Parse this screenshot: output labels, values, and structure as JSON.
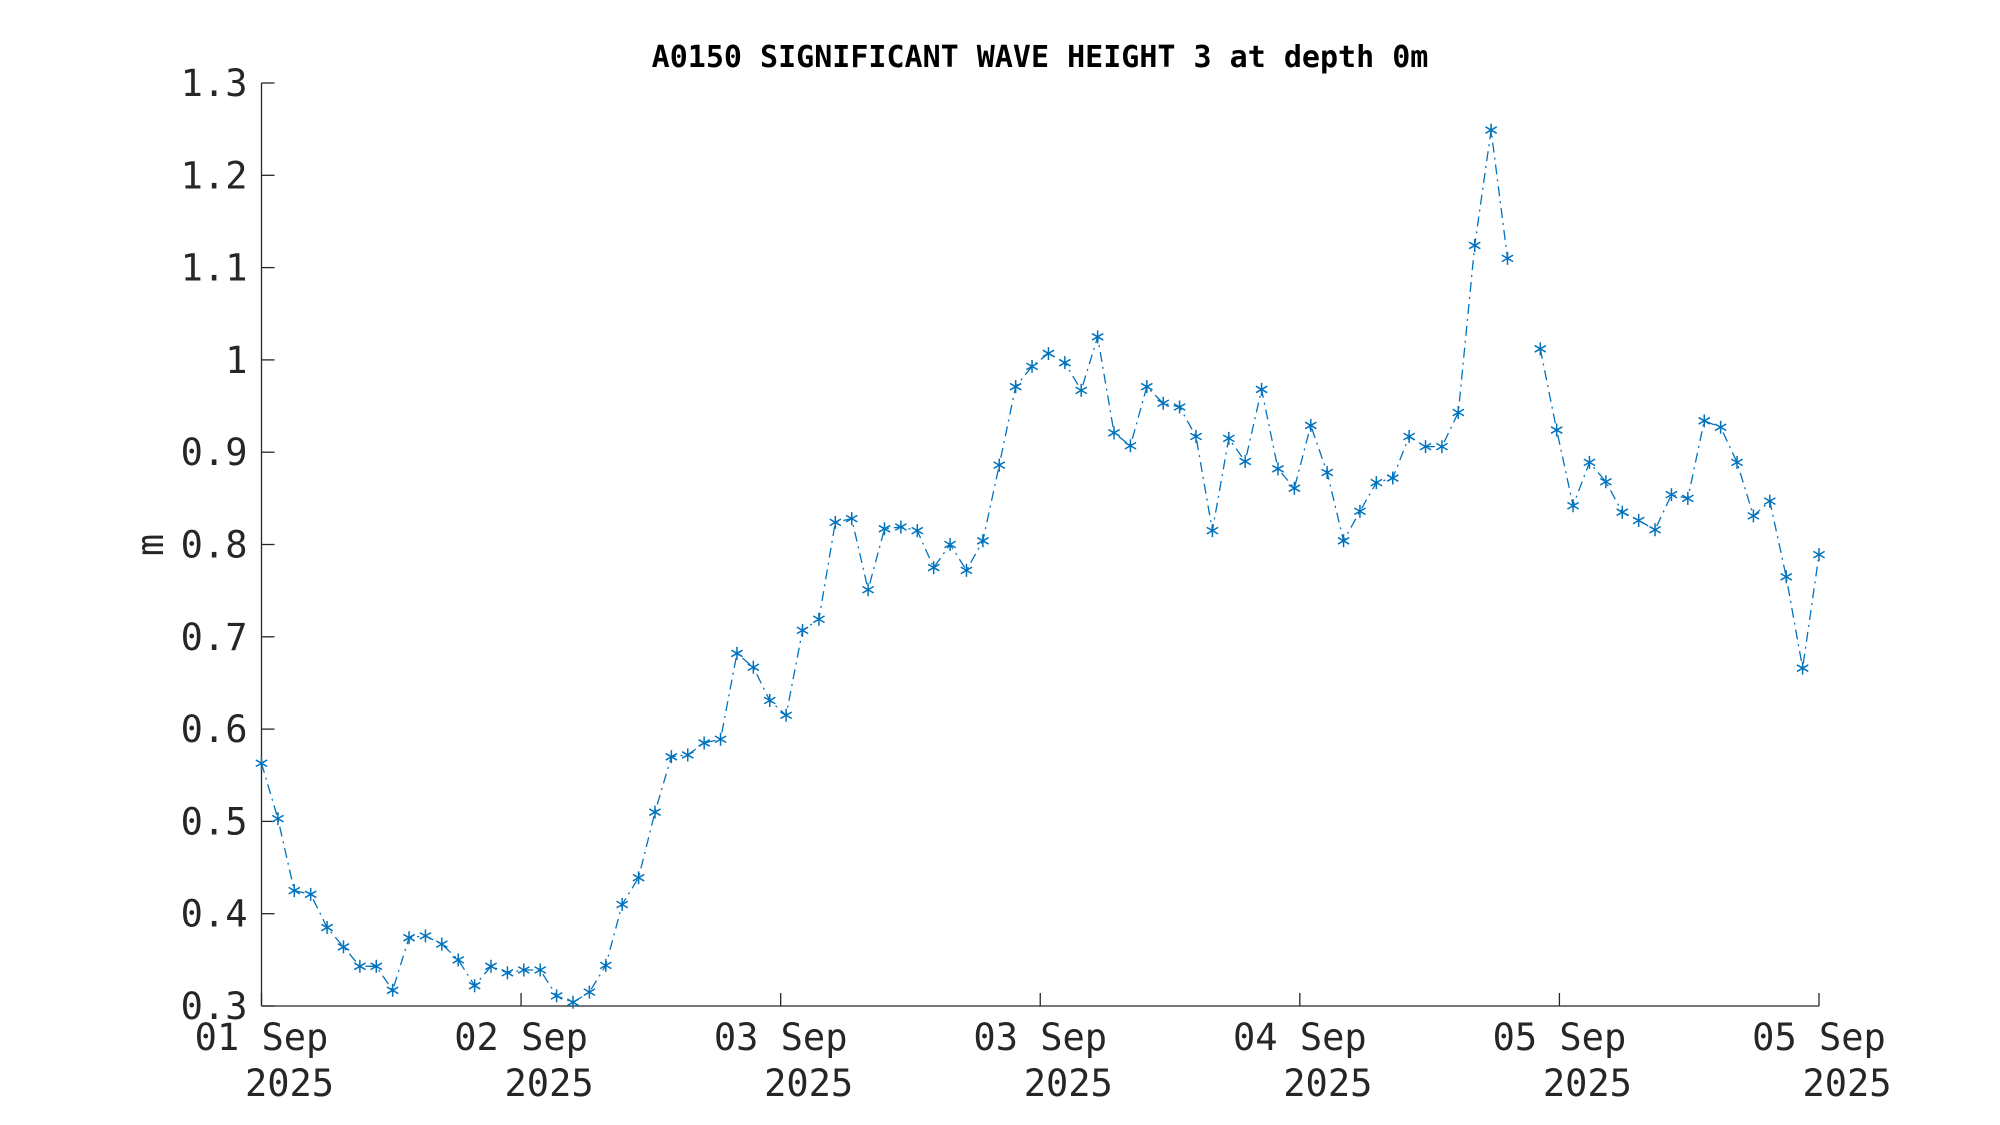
{
  "chart_data": {
    "type": "line",
    "title": "A0150 SIGNIFICANT WAVE HEIGHT 3 at depth 0m",
    "y_label": "m",
    "x_tick_labels": [
      [
        "01 Sep",
        "2025"
      ],
      [
        "02 Sep",
        "2025"
      ],
      [
        "03 Sep",
        "2025"
      ],
      [
        "03 Sep",
        "2025"
      ],
      [
        "04 Sep",
        "2025"
      ],
      [
        "05 Sep",
        "2025"
      ],
      [
        "05 Sep",
        "2025"
      ]
    ],
    "series": [
      {
        "name": "A0150",
        "color": "#0072bd",
        "marker": "*",
        "line_style": "dash-dot",
        "values": [
          0.563,
          0.503,
          0.425,
          0.421,
          0.385,
          0.364,
          0.343,
          0.343,
          0.317,
          0.374,
          0.376,
          0.367,
          0.35,
          0.322,
          0.343,
          0.336,
          0.339,
          0.339,
          0.311,
          0.304,
          0.315,
          0.344,
          0.41,
          0.439,
          0.51,
          0.57,
          0.572,
          0.585,
          0.589,
          0.682,
          0.667,
          0.631,
          0.615,
          0.707,
          0.719,
          0.824,
          0.828,
          0.751,
          0.817,
          0.819,
          0.815,
          0.775,
          0.8,
          0.772,
          0.804,
          0.886,
          0.971,
          0.993,
          1.007,
          0.997,
          0.967,
          1.025,
          0.921,
          0.907,
          0.971,
          0.953,
          0.949,
          0.917,
          0.815,
          0.915,
          0.89,
          0.968,
          0.882,
          0.861,
          0.929,
          0.878,
          0.804,
          0.836,
          0.867,
          0.872,
          0.917,
          0.906,
          0.906,
          0.943,
          1.124,
          1.249,
          1.11,
          null,
          1.012,
          0.924,
          0.842,
          0.889,
          0.868,
          0.835,
          0.826,
          0.816,
          0.854,
          0.85,
          0.934,
          0.927,
          0.889,
          0.831,
          0.847,
          0.765,
          0.666,
          0.789
        ]
      }
    ],
    "ylim": [
      0.3,
      1.3
    ],
    "yticks": [
      0.3,
      0.4,
      0.5,
      0.6,
      0.7,
      0.8,
      0.9,
      1,
      1.1,
      1.2,
      1.3
    ],
    "grid": false
  }
}
